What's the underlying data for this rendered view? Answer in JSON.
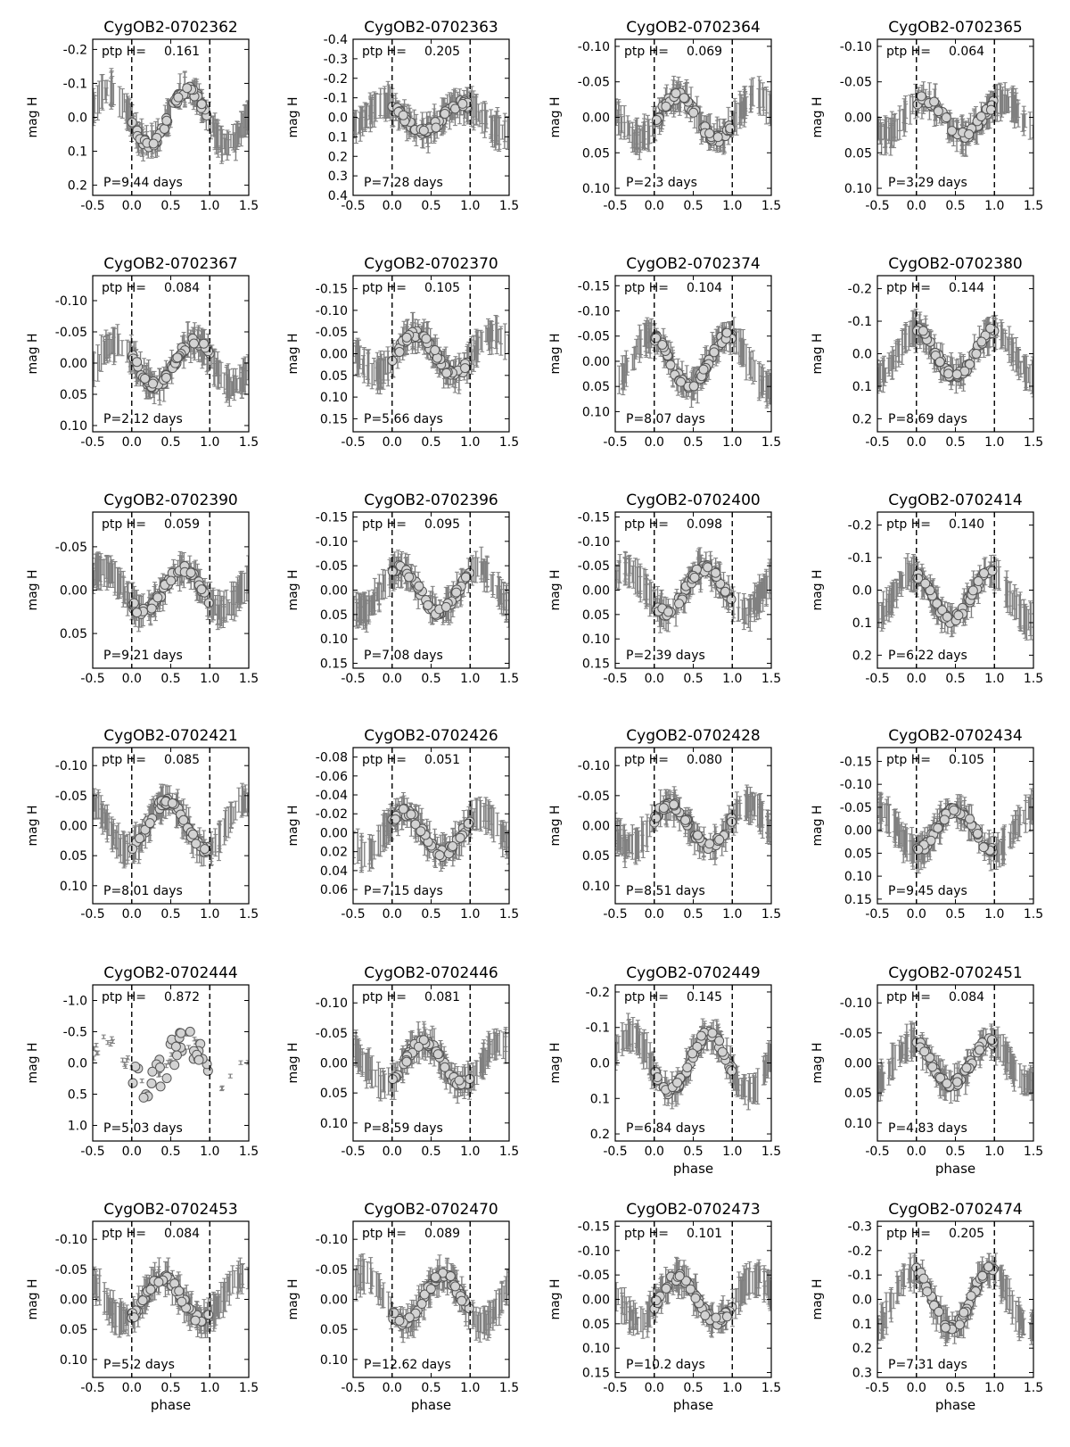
{
  "chart_data": [
    {
      "type": "scatter",
      "title": "CygOB2-0702362",
      "ptp": "0.161",
      "period": "P=9.44 days",
      "xlabel": "",
      "ylabel": "mag H",
      "xlim": [
        -0.5,
        1.5
      ],
      "ylim": [
        0.23,
        -0.23
      ],
      "yticks": [
        "-0.2",
        "-0.1",
        "0.0",
        "0.1",
        "0.2"
      ],
      "ytick_values": [
        -0.2,
        -0.1,
        0.0,
        0.1,
        0.2
      ],
      "xticks": [
        "-0.5",
        "0.0",
        "0.5",
        "1.0",
        "1.5"
      ],
      "shape": "sine",
      "amplitude": 0.08,
      "offset": 0.0,
      "phase_of_max": 0.72
    },
    {
      "type": "scatter",
      "title": "CygOB2-0702363",
      "ptp": "0.205",
      "period": "P=7.28 days",
      "xlabel": "",
      "ylabel": "mag H",
      "xlim": [
        -0.5,
        1.5
      ],
      "ylim": [
        0.4,
        -0.4
      ],
      "yticks": [
        "-0.4",
        "-0.3",
        "-0.2",
        "-0.1",
        "0.0",
        "0.1",
        "0.2",
        "0.3",
        "0.4"
      ],
      "ytick_values": [
        -0.4,
        -0.3,
        -0.2,
        -0.1,
        0.0,
        0.1,
        0.2,
        0.3,
        0.4
      ],
      "xticks": [
        "-0.5",
        "0.0",
        "0.5",
        "1.0",
        "1.5"
      ],
      "shape": "sine",
      "amplitude": 0.07,
      "offset": 0.0,
      "phase_of_max": 0.9
    },
    {
      "type": "scatter",
      "title": "CygOB2-0702364",
      "ptp": "0.069",
      "period": "P=2.3 days",
      "xlabel": "",
      "ylabel": "mag H",
      "xlim": [
        -0.5,
        1.5
      ],
      "ylim": [
        0.11,
        -0.11
      ],
      "yticks": [
        "-0.10",
        "-0.05",
        "0.00",
        "0.05",
        "0.10"
      ],
      "ytick_values": [
        -0.1,
        -0.05,
        0.0,
        0.05,
        0.1
      ],
      "xticks": [
        "-0.5",
        "0.0",
        "0.5",
        "1.0",
        "1.5"
      ],
      "shape": "sine",
      "amplitude": 0.03,
      "offset": 0.0,
      "phase_of_max": 0.3
    },
    {
      "type": "scatter",
      "title": "CygOB2-0702365",
      "ptp": "0.064",
      "period": "P=3.29 days",
      "xlabel": "",
      "ylabel": "mag H",
      "xlim": [
        -0.5,
        1.5
      ],
      "ylim": [
        0.11,
        -0.11
      ],
      "yticks": [
        "-0.10",
        "-0.05",
        "0.00",
        "0.05",
        "0.10"
      ],
      "ytick_values": [
        -0.1,
        -0.05,
        0.0,
        0.05,
        0.1
      ],
      "xticks": [
        "-0.5",
        "0.0",
        "0.5",
        "1.0",
        "1.5"
      ],
      "shape": "sine",
      "amplitude": 0.025,
      "offset": 0.0,
      "phase_of_max": 0.1
    },
    {
      "type": "scatter",
      "title": "CygOB2-0702367",
      "ptp": "0.084",
      "period": "P=2.12 days",
      "xlabel": "",
      "ylabel": "mag H",
      "xlim": [
        -0.5,
        1.5
      ],
      "ylim": [
        0.11,
        -0.14
      ],
      "yticks": [
        "-0.10",
        "-0.05",
        "0.00",
        "0.05",
        "0.10"
      ],
      "ytick_values": [
        -0.1,
        -0.05,
        0.0,
        0.05,
        0.1
      ],
      "xticks": [
        "-0.5",
        "0.0",
        "0.5",
        "1.0",
        "1.5"
      ],
      "shape": "sine",
      "amplitude": 0.035,
      "offset": 0.0,
      "phase_of_max": 0.8
    },
    {
      "type": "scatter",
      "title": "CygOB2-0702370",
      "ptp": "0.105",
      "period": "P=5.66 days",
      "xlabel": "",
      "ylabel": "mag H",
      "xlim": [
        -0.5,
        1.5
      ],
      "ylim": [
        0.18,
        -0.18
      ],
      "yticks": [
        "-0.15",
        "-0.10",
        "-0.05",
        "0.00",
        "0.05",
        "0.10",
        "0.15"
      ],
      "ytick_values": [
        -0.15,
        -0.1,
        -0.05,
        0.0,
        0.05,
        0.1,
        0.15
      ],
      "xticks": [
        "-0.5",
        "0.0",
        "0.5",
        "1.0",
        "1.5"
      ],
      "shape": "sine",
      "amplitude": 0.045,
      "offset": 0.0,
      "phase_of_max": 0.3
    },
    {
      "type": "scatter",
      "title": "CygOB2-0702374",
      "ptp": "0.104",
      "period": "P=8.07 days",
      "xlabel": "",
      "ylabel": "mag H",
      "xlim": [
        -0.5,
        1.5
      ],
      "ylim": [
        0.14,
        -0.17
      ],
      "yticks": [
        "-0.15",
        "-0.10",
        "-0.05",
        "0.00",
        "0.05",
        "0.10"
      ],
      "ytick_values": [
        -0.15,
        -0.1,
        -0.05,
        0.0,
        0.05,
        0.1
      ],
      "xticks": [
        "-0.5",
        "0.0",
        "0.5",
        "1.0",
        "1.5"
      ],
      "shape": "sine",
      "amplitude": 0.05,
      "offset": 0.0,
      "phase_of_max": 0.95
    },
    {
      "type": "scatter",
      "title": "CygOB2-0702380",
      "ptp": "0.144",
      "period": "P=8.69 days",
      "xlabel": "",
      "ylabel": "mag H",
      "xlim": [
        -0.5,
        1.5
      ],
      "ylim": [
        0.24,
        -0.24
      ],
      "yticks": [
        "-0.2",
        "-0.1",
        "0.0",
        "0.1",
        "0.2"
      ],
      "ytick_values": [
        -0.2,
        -0.1,
        0.0,
        0.1,
        0.2
      ],
      "xticks": [
        "-0.5",
        "0.0",
        "0.5",
        "1.0",
        "1.5"
      ],
      "shape": "sine",
      "amplitude": 0.07,
      "offset": 0.0,
      "phase_of_max": 0.0
    },
    {
      "type": "scatter",
      "title": "CygOB2-0702390",
      "ptp": "0.059",
      "period": "P=9.21 days",
      "xlabel": "",
      "ylabel": "mag H",
      "xlim": [
        -0.5,
        1.5
      ],
      "ylim": [
        0.09,
        -0.09
      ],
      "yticks": [
        "-0.05",
        "0.00",
        "0.05"
      ],
      "ytick_values": [
        -0.05,
        0.0,
        0.05
      ],
      "xticks": [
        "-0.5",
        "0.0",
        "0.5",
        "1.0",
        "1.5"
      ],
      "shape": "sine",
      "amplitude": 0.025,
      "offset": 0.0,
      "phase_of_max": 0.65
    },
    {
      "type": "scatter",
      "title": "CygOB2-0702396",
      "ptp": "0.095",
      "period": "P=7.08 days",
      "xlabel": "",
      "ylabel": "mag H",
      "xlim": [
        -0.5,
        1.5
      ],
      "ylim": [
        0.16,
        -0.16
      ],
      "yticks": [
        "-0.15",
        "-0.10",
        "-0.05",
        "0.00",
        "0.05",
        "0.10",
        "0.15"
      ],
      "ytick_values": [
        -0.15,
        -0.1,
        -0.05,
        0.0,
        0.05,
        0.1,
        0.15
      ],
      "xticks": [
        "-0.5",
        "0.0",
        "0.5",
        "1.0",
        "1.5"
      ],
      "shape": "sine",
      "amplitude": 0.045,
      "offset": 0.0,
      "phase_of_max": 0.1
    },
    {
      "type": "scatter",
      "title": "CygOB2-0702400",
      "ptp": "0.098",
      "period": "P=2.39 days",
      "xlabel": "",
      "ylabel": "mag H",
      "xlim": [
        -0.5,
        1.5
      ],
      "ylim": [
        0.16,
        -0.16
      ],
      "yticks": [
        "-0.15",
        "-0.10",
        "-0.05",
        "0.00",
        "0.05",
        "0.10",
        "0.15"
      ],
      "ytick_values": [
        -0.15,
        -0.1,
        -0.05,
        0.0,
        0.05,
        0.1,
        0.15
      ],
      "xticks": [
        "-0.5",
        "0.0",
        "0.5",
        "1.0",
        "1.5"
      ],
      "shape": "sine",
      "amplitude": 0.045,
      "offset": 0.0,
      "phase_of_max": 0.65
    },
    {
      "type": "scatter",
      "title": "CygOB2-0702414",
      "ptp": "0.140",
      "period": "P=6.22 days",
      "xlabel": "",
      "ylabel": "mag H",
      "xlim": [
        -0.5,
        1.5
      ],
      "ylim": [
        0.24,
        -0.24
      ],
      "yticks": [
        "-0.2",
        "-0.1",
        "0.0",
        "0.1",
        "0.2"
      ],
      "ytick_values": [
        -0.2,
        -0.1,
        0.0,
        0.1,
        0.2
      ],
      "xticks": [
        "-0.5",
        "0.0",
        "0.5",
        "1.0",
        "1.5"
      ],
      "shape": "sine",
      "amplitude": 0.07,
      "offset": 0.02,
      "phase_of_max": 0.95
    },
    {
      "type": "scatter",
      "title": "CygOB2-0702421",
      "ptp": "0.085",
      "period": "P=8.01 days",
      "xlabel": "",
      "ylabel": "mag H",
      "xlim": [
        -0.5,
        1.5
      ],
      "ylim": [
        0.13,
        -0.13
      ],
      "yticks": [
        "-0.10",
        "-0.05",
        "0.00",
        "0.05",
        "0.10"
      ],
      "ytick_values": [
        -0.1,
        -0.05,
        0.0,
        0.05,
        0.1
      ],
      "xticks": [
        "-0.5",
        "0.0",
        "0.5",
        "1.0",
        "1.5"
      ],
      "shape": "sine",
      "amplitude": 0.04,
      "offset": 0.0,
      "phase_of_max": 0.45
    },
    {
      "type": "scatter",
      "title": "CygOB2-0702426",
      "ptp": "0.051",
      "period": "P=7.15 days",
      "xlabel": "",
      "ylabel": "mag H",
      "xlim": [
        -0.5,
        1.5
      ],
      "ylim": [
        0.075,
        -0.09
      ],
      "yticks": [
        "-0.08",
        "-0.06",
        "-0.04",
        "-0.02",
        "0.00",
        "0.02",
        "0.04",
        "0.06"
      ],
      "ytick_values": [
        -0.08,
        -0.06,
        -0.04,
        -0.02,
        0.0,
        0.02,
        0.04,
        0.06
      ],
      "xticks": [
        "-0.5",
        "0.0",
        "0.5",
        "1.0",
        "1.5"
      ],
      "shape": "sine",
      "amplitude": 0.022,
      "offset": 0.0,
      "phase_of_max": 0.15
    },
    {
      "type": "scatter",
      "title": "CygOB2-0702428",
      "ptp": "0.080",
      "period": "P=8.51 days",
      "xlabel": "",
      "ylabel": "mag H",
      "xlim": [
        -0.5,
        1.5
      ],
      "ylim": [
        0.13,
        -0.13
      ],
      "yticks": [
        "-0.10",
        "-0.05",
        "0.00",
        "0.05",
        "0.10"
      ],
      "ytick_values": [
        -0.1,
        -0.05,
        0.0,
        0.05,
        0.1
      ],
      "xticks": [
        "-0.5",
        "0.0",
        "0.5",
        "1.0",
        "1.5"
      ],
      "shape": "sine",
      "amplitude": 0.035,
      "offset": 0.0,
      "phase_of_max": 0.2
    },
    {
      "type": "scatter",
      "title": "CygOB2-0702434",
      "ptp": "0.105",
      "period": "P=9.45 days",
      "xlabel": "",
      "ylabel": "mag H",
      "xlim": [
        -0.5,
        1.5
      ],
      "ylim": [
        0.16,
        -0.18
      ],
      "yticks": [
        "-0.15",
        "-0.10",
        "-0.05",
        "0.00",
        "0.05",
        "0.10",
        "0.15"
      ],
      "ytick_values": [
        -0.15,
        -0.1,
        -0.05,
        0.0,
        0.05,
        0.1,
        0.15
      ],
      "xticks": [
        "-0.5",
        "0.0",
        "0.5",
        "1.0",
        "1.5"
      ],
      "shape": "sine",
      "amplitude": 0.045,
      "offset": 0.0,
      "phase_of_max": 0.5
    },
    {
      "type": "scatter",
      "title": "CygOB2-0702444",
      "ptp": "0.872",
      "period": "P=5.03 days",
      "xlabel": "",
      "ylabel": "mag H",
      "xlim": [
        -0.5,
        1.5
      ],
      "ylim": [
        1.25,
        -1.25
      ],
      "yticks": [
        "-1.0",
        "-0.5",
        "0.0",
        "0.5",
        "1.0"
      ],
      "ytick_values": [
        -1.0,
        -0.5,
        0.0,
        0.5,
        1.0
      ],
      "xticks": [
        "-0.5",
        "0.0",
        "0.5",
        "1.0",
        "1.5"
      ],
      "shape": "scatter",
      "amplitude": 0.35,
      "offset": 0.0,
      "phase_of_max": 0.7
    },
    {
      "type": "scatter",
      "title": "CygOB2-0702446",
      "ptp": "0.081",
      "period": "P=8.59 days",
      "xlabel": "",
      "ylabel": "mag H",
      "xlim": [
        -0.5,
        1.5
      ],
      "ylim": [
        0.13,
        -0.13
      ],
      "yticks": [
        "-0.10",
        "-0.05",
        "0.00",
        "0.05",
        "0.10"
      ],
      "ytick_values": [
        -0.1,
        -0.05,
        0.0,
        0.05,
        0.1
      ],
      "xticks": [
        "-0.5",
        "0.0",
        "0.5",
        "1.0",
        "1.5"
      ],
      "shape": "sine",
      "amplitude": 0.035,
      "offset": 0.0,
      "phase_of_max": 0.4
    },
    {
      "type": "scatter",
      "title": "CygOB2-0702449",
      "ptp": "0.145",
      "period": "P=6.84 days",
      "xlabel": "phase",
      "ylabel": "mag H",
      "xlim": [
        -0.5,
        1.5
      ],
      "ylim": [
        0.22,
        -0.22
      ],
      "yticks": [
        "-0.2",
        "-0.1",
        "0.0",
        "0.1",
        "0.2"
      ],
      "ytick_values": [
        -0.2,
        -0.1,
        0.0,
        0.1,
        0.2
      ],
      "xticks": [
        "-0.5",
        "0.0",
        "0.5",
        "1.0",
        "1.5"
      ],
      "shape": "sine",
      "amplitude": 0.08,
      "offset": 0.0,
      "phase_of_max": 0.7
    },
    {
      "type": "scatter",
      "title": "CygOB2-0702451",
      "ptp": "0.084",
      "period": "P=4.83 days",
      "xlabel": "phase",
      "ylabel": "mag H",
      "xlim": [
        -0.5,
        1.5
      ],
      "ylim": [
        0.13,
        -0.13
      ],
      "yticks": [
        "-0.10",
        "-0.05",
        "0.00",
        "0.05",
        "0.10"
      ],
      "ytick_values": [
        -0.1,
        -0.05,
        0.0,
        0.05,
        0.1
      ],
      "xticks": [
        "-0.5",
        "0.0",
        "0.5",
        "1.0",
        "1.5"
      ],
      "shape": "sine",
      "amplitude": 0.035,
      "offset": 0.0,
      "phase_of_max": 0.95
    },
    {
      "type": "scatter",
      "title": "CygOB2-0702453",
      "ptp": "0.084",
      "period": "P=5.2 days",
      "xlabel": "phase",
      "ylabel": "mag H",
      "xlim": [
        -0.5,
        1.5
      ],
      "ylim": [
        0.13,
        -0.13
      ],
      "yticks": [
        "-0.10",
        "-0.05",
        "0.00",
        "0.05",
        "0.10"
      ],
      "ytick_values": [
        -0.1,
        -0.05,
        0.0,
        0.05,
        0.1
      ],
      "xticks": [
        "-0.5",
        "0.0",
        "0.5",
        "1.0",
        "1.5"
      ],
      "shape": "sine",
      "amplitude": 0.035,
      "offset": 0.0,
      "phase_of_max": 0.4
    },
    {
      "type": "scatter",
      "title": "CygOB2-0702470",
      "ptp": "0.089",
      "period": "P=12.62 days",
      "xlabel": "phase",
      "ylabel": "mag H",
      "xlim": [
        -0.5,
        1.5
      ],
      "ylim": [
        0.13,
        -0.13
      ],
      "yticks": [
        "-0.10",
        "-0.05",
        "0.00",
        "0.05",
        "0.10"
      ],
      "ytick_values": [
        -0.1,
        -0.05,
        0.0,
        0.05,
        0.1
      ],
      "xticks": [
        "-0.5",
        "0.0",
        "0.5",
        "1.0",
        "1.5"
      ],
      "shape": "sine",
      "amplitude": 0.04,
      "offset": 0.0,
      "phase_of_max": 0.65
    },
    {
      "type": "scatter",
      "title": "CygOB2-0702473",
      "ptp": "0.101",
      "period": "P=10.2 days",
      "xlabel": "phase",
      "ylabel": "mag H",
      "xlim": [
        -0.5,
        1.5
      ],
      "ylim": [
        0.16,
        -0.16
      ],
      "yticks": [
        "-0.15",
        "-0.10",
        "-0.05",
        "0.00",
        "0.05",
        "0.10",
        "0.15"
      ],
      "ytick_values": [
        -0.15,
        -0.1,
        -0.05,
        0.0,
        0.05,
        0.1,
        0.15
      ],
      "xticks": [
        "-0.5",
        "0.0",
        "0.5",
        "1.0",
        "1.5"
      ],
      "shape": "sine",
      "amplitude": 0.045,
      "offset": 0.0,
      "phase_of_max": 0.3
    },
    {
      "type": "scatter",
      "title": "CygOB2-0702474",
      "ptp": "0.205",
      "period": "P=7.31 days",
      "xlabel": "phase",
      "ylabel": "mag H",
      "xlim": [
        -0.5,
        1.5
      ],
      "ylim": [
        0.32,
        -0.32
      ],
      "yticks": [
        "-0.3",
        "-0.2",
        "-0.1",
        "0.0",
        "0.1",
        "0.2",
        "0.3"
      ],
      "ytick_values": [
        -0.3,
        -0.2,
        -0.1,
        0.0,
        0.1,
        0.2,
        0.3
      ],
      "xticks": [
        "-0.5",
        "0.0",
        "0.5",
        "1.0",
        "1.5"
      ],
      "shape": "sine",
      "amplitude": 0.12,
      "offset": 0.0,
      "phase_of_max": 0.95
    }
  ],
  "ptp_label": "ptp H=",
  "colors": {
    "errorbar": "#808080",
    "marker_fill": "#d3d3d3",
    "marker_edge": "#555555",
    "axis": "#000000"
  }
}
